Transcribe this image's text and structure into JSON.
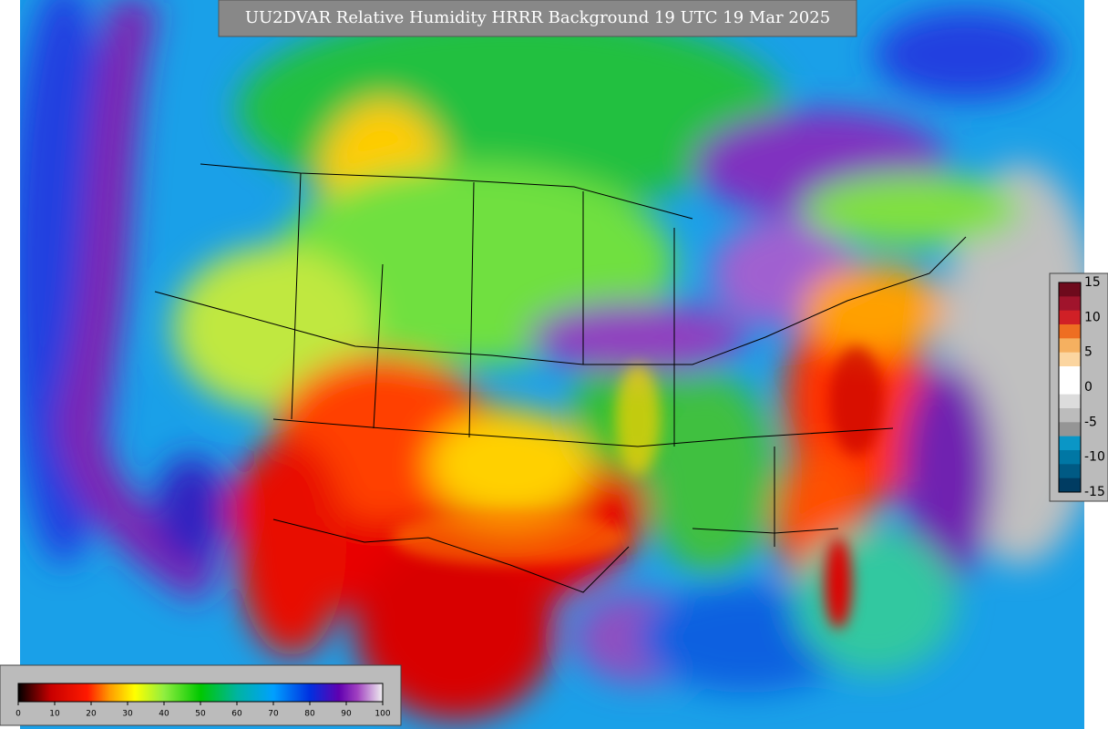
{
  "title": "UU2DVAR Relative Humidity HRRR Background  19 UTC 19 Mar 2025",
  "colorbar": {
    "ticks": [
      "0",
      "10",
      "20",
      "30",
      "40",
      "50",
      "60",
      "70",
      "80",
      "90",
      "100"
    ]
  },
  "increment_bar": {
    "ticks": [
      "15",
      "10",
      "5",
      "0",
      "-5",
      "-10",
      "-15"
    ]
  }
}
